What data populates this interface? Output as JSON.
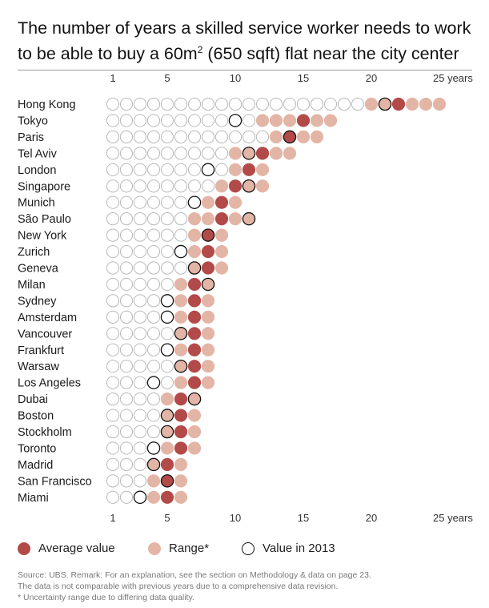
{
  "title_pre": "The number of years a skilled service worker needs to work to be able to buy a 60m",
  "title_sup": "2",
  "title_post": " (650 sqft) flat near the city center",
  "legend": {
    "average": "Average value",
    "range": "Range*",
    "y2013": "Value in 2013"
  },
  "source_lines": [
    "Source: UBS. Remark: For an explanation, see the section on Methodology & data on page 23.",
    "The data is not comparable with previous years due to a comprehensive data revision.",
    "* Uncertainty range due to differing data quality."
  ],
  "colors": {
    "average": "#b24a49",
    "range": "#e3b5a6",
    "empty_stroke": "#b9b9b9",
    "y2013_stroke": "#111111",
    "axis_text": "#333333",
    "city_text": "#1a1a1a"
  },
  "chart_data": {
    "type": "dot-matrix",
    "title": "The number of years a skilled service worker needs to work to be able to buy a 60m2 (650 sqft) flat near the city center",
    "x_ticks": [
      1,
      5,
      10,
      15,
      20,
      25
    ],
    "x_tick_labels": [
      "1",
      "5",
      "10",
      "15",
      "20",
      "25 years"
    ],
    "xlim": [
      1,
      25
    ],
    "series": [
      {
        "city": "Hong Kong",
        "range_min": 20,
        "range_max": 25,
        "average": 22,
        "y2013": 21
      },
      {
        "city": "Tokyo",
        "range_min": 12,
        "range_max": 17,
        "average": 15,
        "y2013": 10
      },
      {
        "city": "Paris",
        "range_min": 13,
        "range_max": 16,
        "average": 14,
        "y2013": 14
      },
      {
        "city": "Tel Aviv",
        "range_min": 10,
        "range_max": 14,
        "average": 12,
        "y2013": 11
      },
      {
        "city": "London",
        "range_min": 10,
        "range_max": 12,
        "average": 11,
        "y2013": 8
      },
      {
        "city": "Singapore",
        "range_min": 9,
        "range_max": 12,
        "average": 10,
        "y2013": 11
      },
      {
        "city": "Munich",
        "range_min": 8,
        "range_max": 10,
        "average": 9,
        "y2013": 7
      },
      {
        "city": "São Paulo",
        "range_min": 7,
        "range_max": 11,
        "average": 9,
        "y2013": 11
      },
      {
        "city": "New York",
        "range_min": 7,
        "range_max": 9,
        "average": 8,
        "y2013": 8
      },
      {
        "city": "Zurich",
        "range_min": 7,
        "range_max": 9,
        "average": 8,
        "y2013": 6
      },
      {
        "city": "Geneva",
        "range_min": 7,
        "range_max": 9,
        "average": 8,
        "y2013": 7
      },
      {
        "city": "Milan",
        "range_min": 6,
        "range_max": 8,
        "average": 7,
        "y2013": 8
      },
      {
        "city": "Sydney",
        "range_min": 6,
        "range_max": 8,
        "average": 7,
        "y2013": 5
      },
      {
        "city": "Amsterdam",
        "range_min": 6,
        "range_max": 8,
        "average": 7,
        "y2013": 5
      },
      {
        "city": "Vancouver",
        "range_min": 6,
        "range_max": 8,
        "average": 7,
        "y2013": 6
      },
      {
        "city": "Frankfurt",
        "range_min": 6,
        "range_max": 8,
        "average": 7,
        "y2013": 5
      },
      {
        "city": "Warsaw",
        "range_min": 6,
        "range_max": 8,
        "average": 7,
        "y2013": 6
      },
      {
        "city": "Los Angeles",
        "range_min": 6,
        "range_max": 8,
        "average": 7,
        "y2013": 4
      },
      {
        "city": "Dubai",
        "range_min": 5,
        "range_max": 7,
        "average": 6,
        "y2013": 7
      },
      {
        "city": "Boston",
        "range_min": 5,
        "range_max": 7,
        "average": 6,
        "y2013": 5
      },
      {
        "city": "Stockholm",
        "range_min": 5,
        "range_max": 7,
        "average": 6,
        "y2013": 5
      },
      {
        "city": "Toronto",
        "range_min": 5,
        "range_max": 7,
        "average": 6,
        "y2013": 4
      },
      {
        "city": "Madrid",
        "range_min": 4,
        "range_max": 6,
        "average": 5,
        "y2013": 4
      },
      {
        "city": "San Francisco",
        "range_min": 4,
        "range_max": 6,
        "average": 5,
        "y2013": 5
      },
      {
        "city": "Miami",
        "range_min": 4,
        "range_max": 6,
        "average": 5,
        "y2013": 3
      }
    ]
  }
}
